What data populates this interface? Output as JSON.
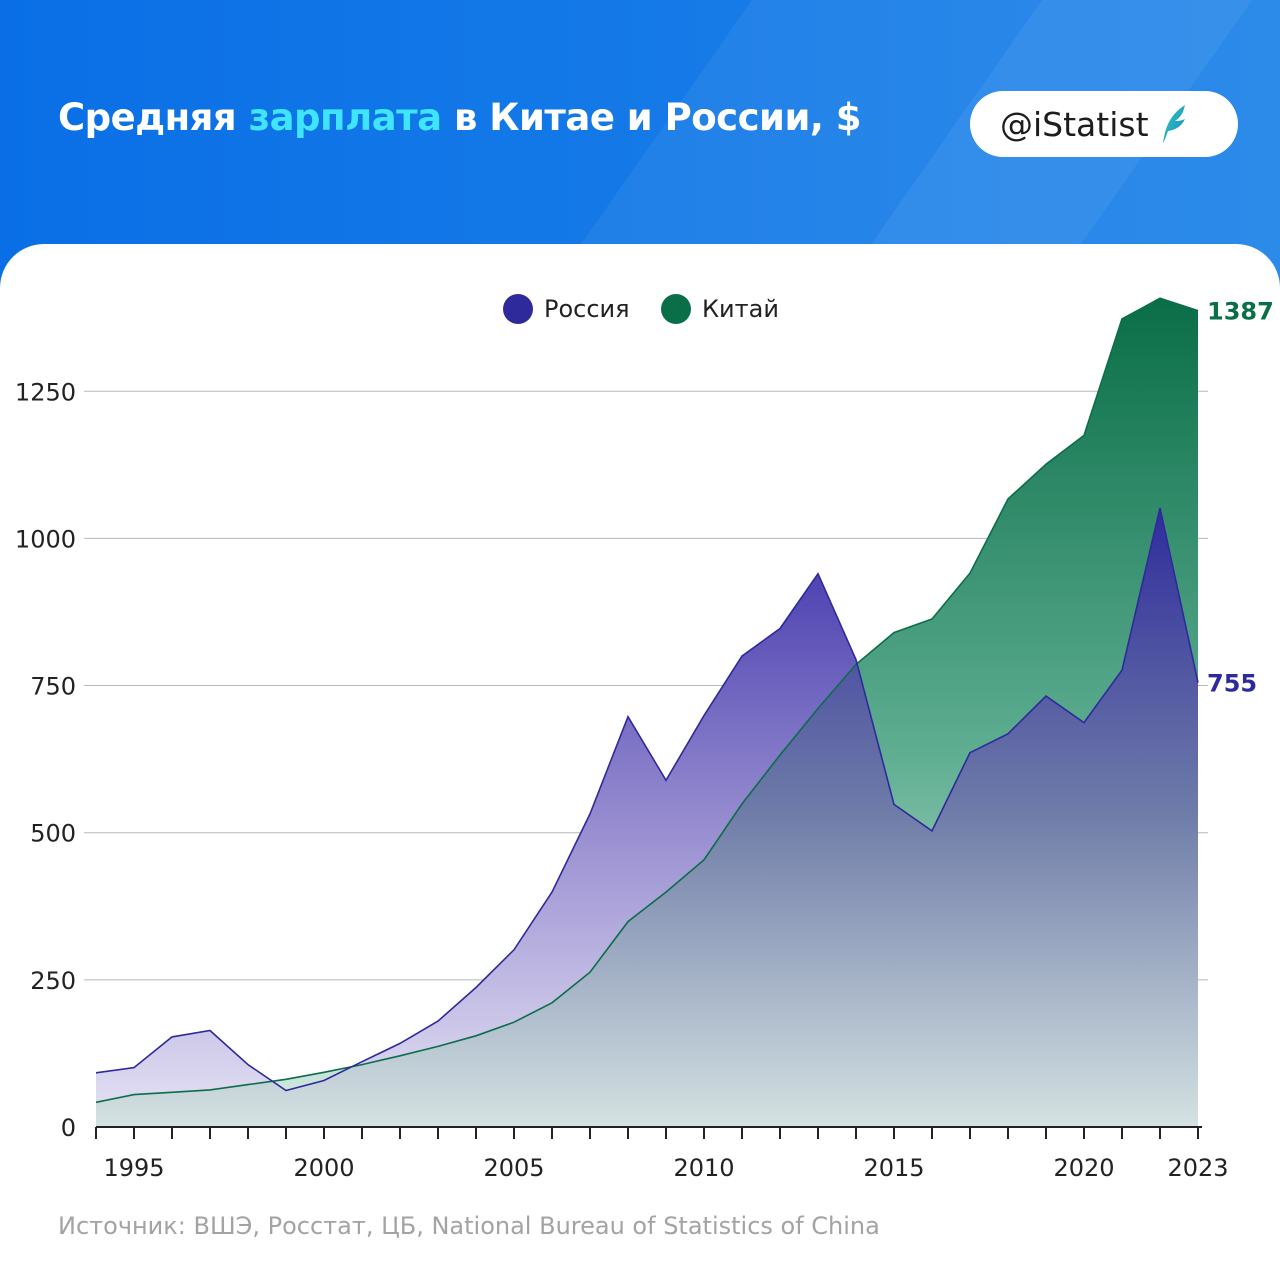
{
  "header": {
    "title_part1": "Средняя ",
    "title_accent": "зарплата",
    "title_part2": " в Китае и России, $",
    "badge": "@iStatist",
    "badge_icon": "feather-logo-icon"
  },
  "colors": {
    "header_bg": "#0a6fe6",
    "title_accent": "#3fe4ff",
    "russia": "#2e2a9c",
    "china": "#0a6e48",
    "grid": "#b8b8b8",
    "source_text": "#a3a3a3"
  },
  "source": "Источник: ВШЭ, Росстат, ЦБ, National Bureau of Statistics  of China",
  "chart_data": {
    "type": "area",
    "x": [
      1994,
      1995,
      1996,
      1997,
      1998,
      1999,
      2000,
      2001,
      2002,
      2003,
      2004,
      2005,
      2006,
      2007,
      2008,
      2009,
      2010,
      2011,
      2012,
      2013,
      2014,
      2015,
      2016,
      2017,
      2018,
      2019,
      2020,
      2021,
      2022,
      2023
    ],
    "x_tick_labels": [
      {
        "x": 1995,
        "label": "1995"
      },
      {
        "x": 2000,
        "label": "2000"
      },
      {
        "x": 2005,
        "label": "2005"
      },
      {
        "x": 2010,
        "label": "2010"
      },
      {
        "x": 2015,
        "label": "2015"
      },
      {
        "x": 2020,
        "label": "2020"
      },
      {
        "x": 2023,
        "label": "2023"
      }
    ],
    "y_ticks": [
      0,
      250,
      500,
      750,
      1000,
      1250
    ],
    "ylim": [
      0,
      1400
    ],
    "xlim": [
      1994,
      2023
    ],
    "grid": true,
    "legend_position": "top-center",
    "series": [
      {
        "name": "Россия",
        "color": "#2e2a9c",
        "values": [
          92,
          101,
          153,
          164,
          106,
          62,
          79,
          111,
          142,
          180,
          237,
          301,
          399,
          532,
          697,
          589,
          699,
          800,
          847,
          940,
          794,
          548,
          503,
          636,
          668,
          732,
          687,
          776,
          1052,
          755
        ],
        "end_label": "755"
      },
      {
        "name": "Китай",
        "color": "#0a6e48",
        "values": [
          42,
          55,
          59,
          63,
          72,
          81,
          93,
          106,
          121,
          137,
          155,
          178,
          211,
          263,
          349,
          399,
          454,
          549,
          632,
          711,
          786,
          840,
          863,
          941,
          1067,
          1126,
          1175,
          1373,
          1408,
          1387
        ],
        "end_label": "1387"
      }
    ]
  }
}
